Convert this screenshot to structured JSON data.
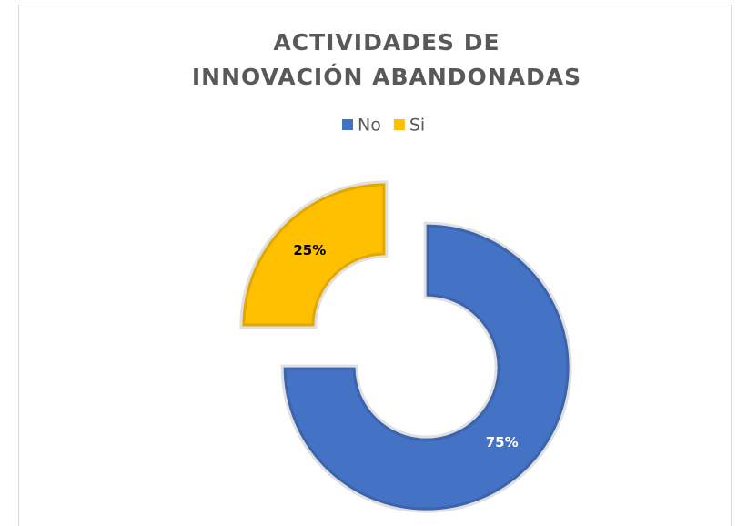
{
  "chart_data": {
    "type": "donut",
    "title": "ACTIVIDADES DE INNOVACIÓN ABANDONADAS",
    "categories": [
      "No",
      "Si"
    ],
    "values": [
      75,
      25
    ],
    "value_labels": [
      "75%",
      "25%"
    ],
    "colors": [
      "#4472C4",
      "#FFC000"
    ],
    "label_colors": [
      "#ffffff",
      "#000000"
    ],
    "legend": "top"
  }
}
